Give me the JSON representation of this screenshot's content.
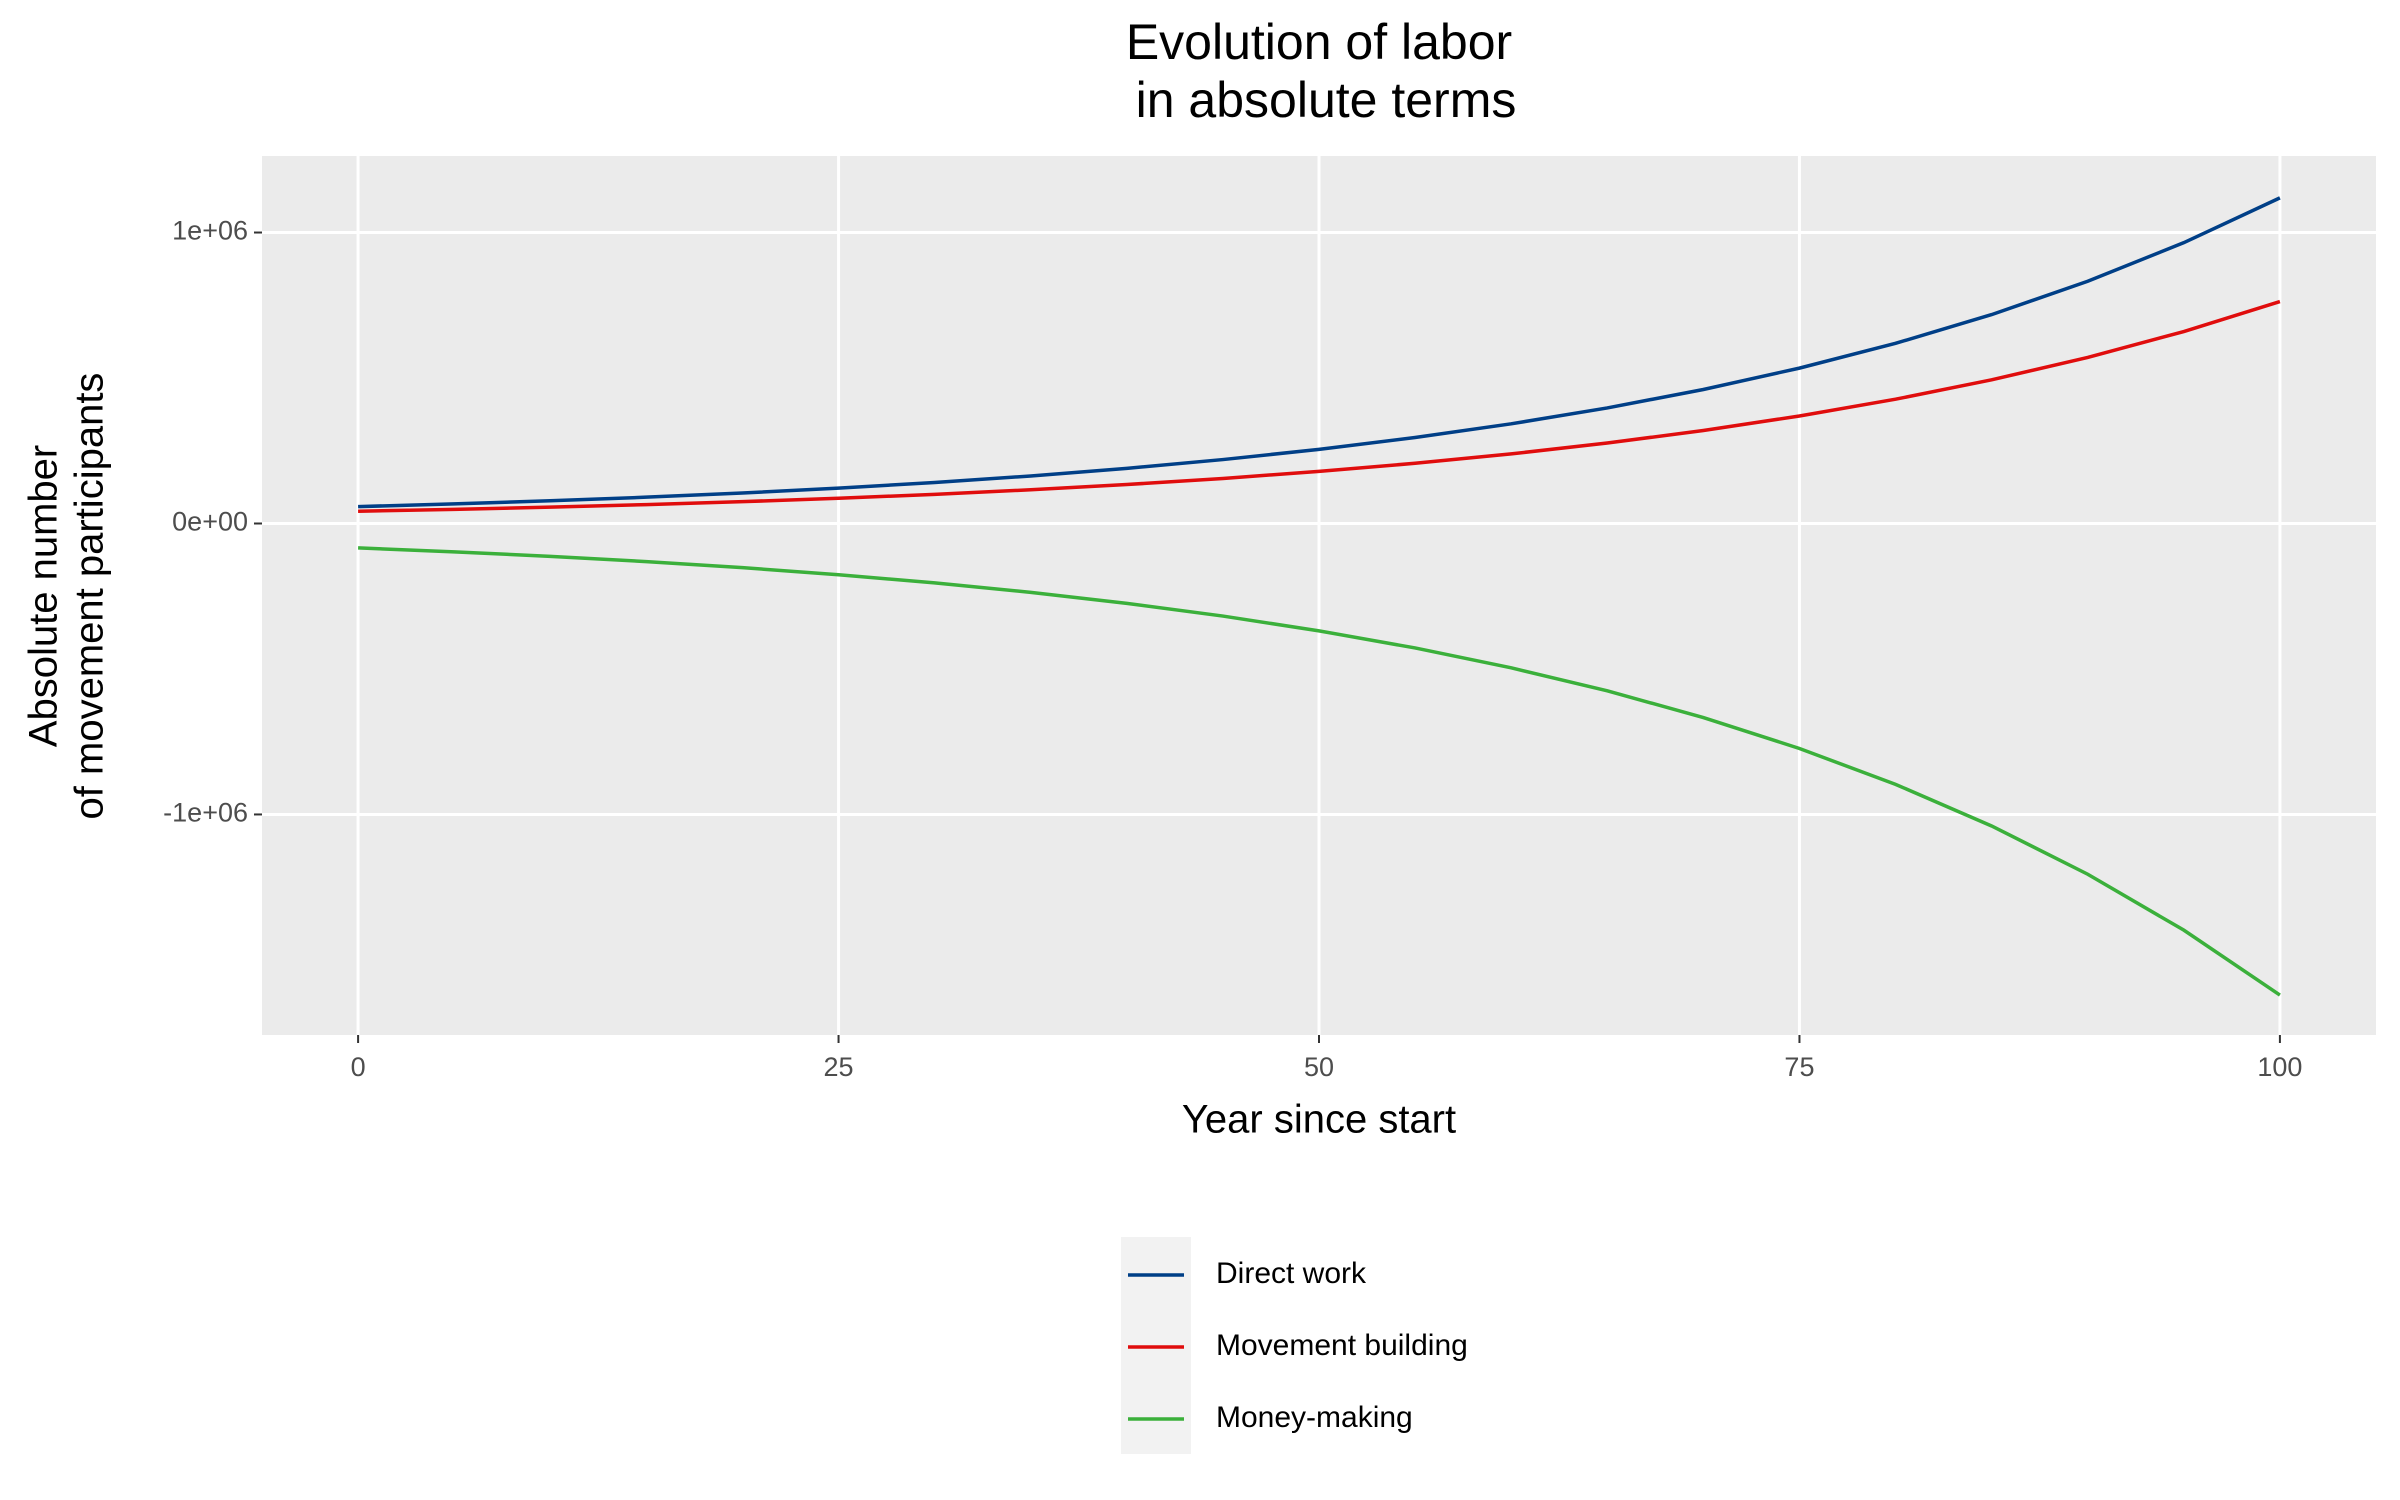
{
  "chart_data": {
    "type": "line",
    "title": [
      "Evolution of labor",
      "in absolute terms"
    ],
    "x_label": "Year since start",
    "y_label": [
      "Absolute number",
      "of movement participants"
    ],
    "x": [
      0,
      5,
      10,
      15,
      20,
      25,
      30,
      35,
      40,
      45,
      50,
      55,
      60,
      65,
      70,
      75,
      80,
      85,
      90,
      95,
      100
    ],
    "series": [
      {
        "name": "Direct work",
        "color": "#003f87",
        "values": [
          58000,
          67300,
          78000,
          90400,
          104800,
          121600,
          141000,
          163400,
          189500,
          219700,
          254800,
          295400,
          342500,
          397200,
          460500,
          534000,
          619100,
          717900,
          832400,
          965100,
          1119100
        ]
      },
      {
        "name": "Movement building",
        "color": "#e00d0d",
        "values": [
          42000,
          48600,
          56100,
          64900,
          75000,
          86700,
          100200,
          115900,
          133900,
          154800,
          179000,
          206900,
          239200,
          276500,
          319600,
          369500,
          427100,
          493700,
          570700,
          659800,
          762700
        ]
      },
      {
        "name": "Money-making",
        "color": "#3bb03b",
        "values": [
          -84000,
          -97400,
          -112900,
          -130900,
          -151800,
          -176100,
          -204100,
          -236700,
          -274400,
          -318200,
          -369000,
          -427800,
          -496100,
          -575200,
          -666900,
          -773300,
          -896600,
          -1039600,
          -1205500,
          -1397700,
          -1620700
        ]
      }
    ],
    "xlim": [
      -5,
      105
    ],
    "xticks": [
      0,
      25,
      50,
      75,
      100
    ],
    "ylim": [
      -1758000,
      1263000
    ],
    "yticks": [
      {
        "value": -1000000,
        "label": "-1e+06"
      },
      {
        "value": 0,
        "label": "0e+00"
      },
      {
        "value": 1000000,
        "label": "1e+06"
      }
    ],
    "grid": true
  }
}
